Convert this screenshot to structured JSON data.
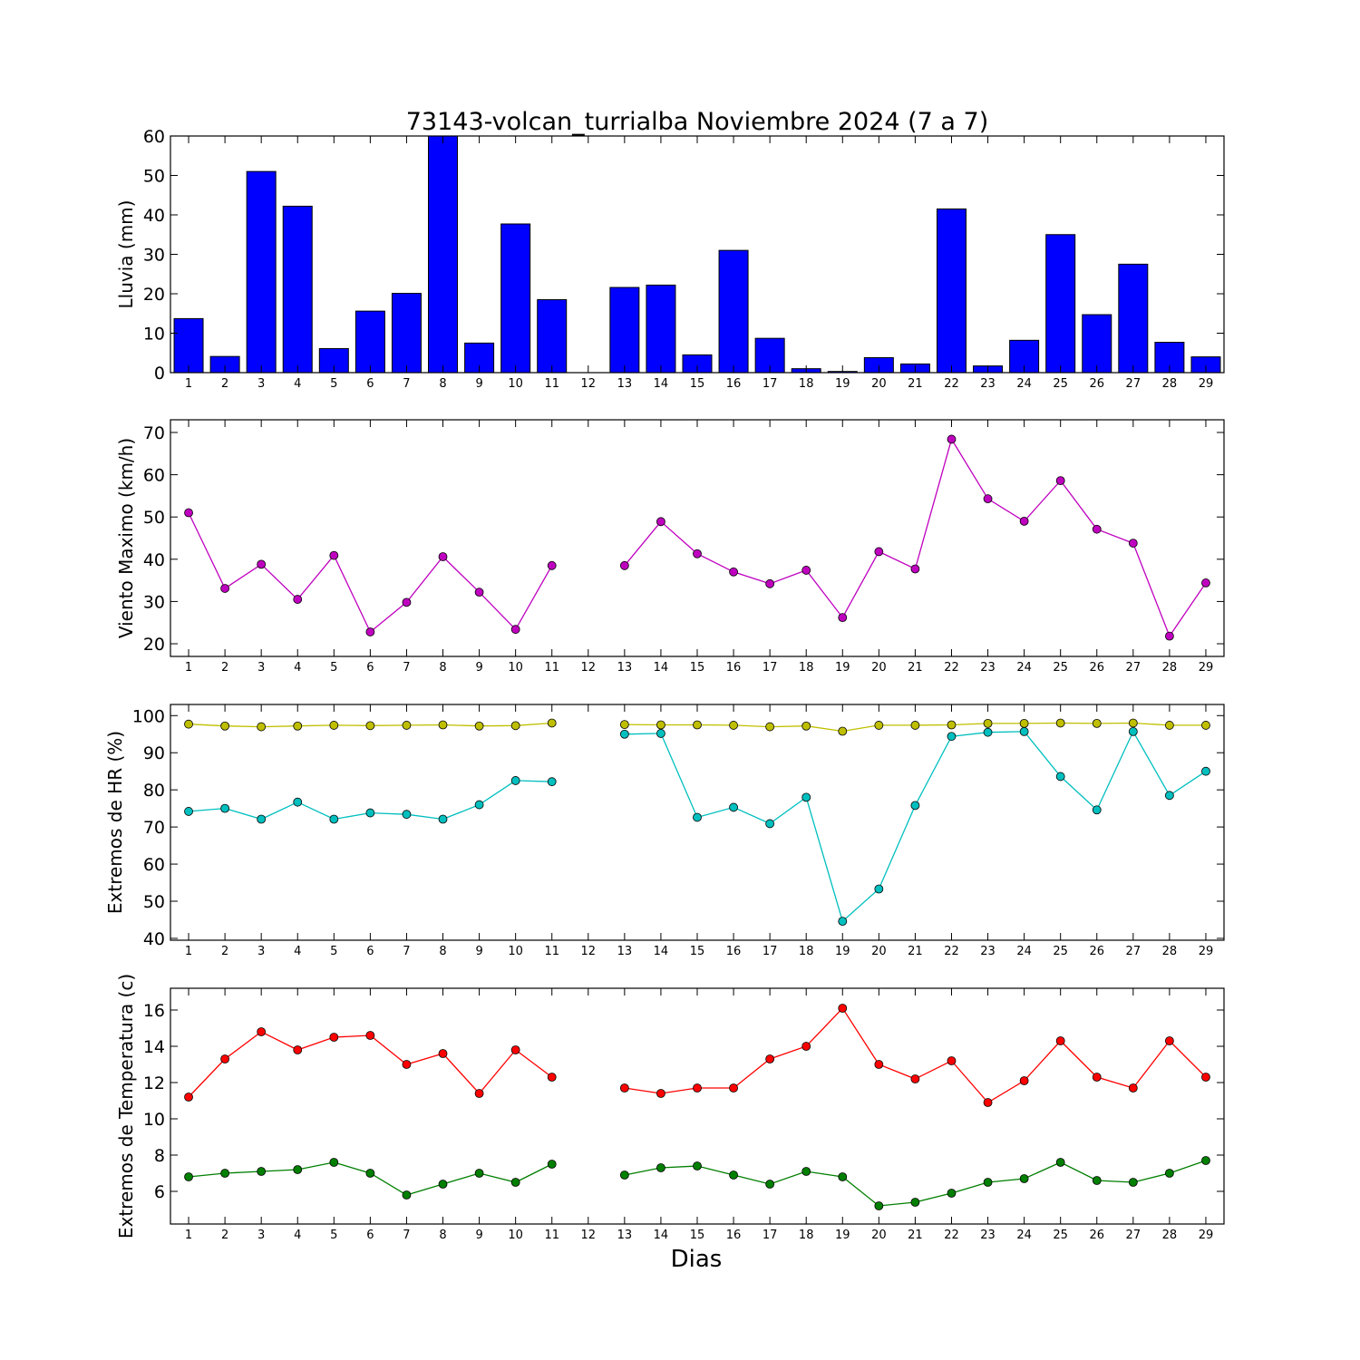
{
  "title": "73143-volcan_turrialba Noviembre 2024  (7 a 7)",
  "xlabel": "Dias",
  "chart_data": [
    {
      "type": "bar",
      "ylabel": "Lluvia (mm)",
      "ylim": [
        0,
        60
      ],
      "yticks": [
        0,
        10,
        20,
        30,
        40,
        50,
        60
      ],
      "categories": [
        1,
        2,
        3,
        4,
        5,
        6,
        7,
        8,
        9,
        10,
        11,
        12,
        13,
        14,
        15,
        16,
        17,
        18,
        19,
        20,
        21,
        22,
        23,
        24,
        25,
        26,
        27,
        28,
        29
      ],
      "series": [
        {
          "color": "#0000ff",
          "values": [
            13.7,
            4.1,
            51.0,
            42.2,
            6.1,
            15.6,
            20.1,
            60.0,
            7.5,
            37.7,
            18.5,
            null,
            21.6,
            22.2,
            4.5,
            31.0,
            8.7,
            1.0,
            0.3,
            3.8,
            2.2,
            41.5,
            1.7,
            8.2,
            35.0,
            14.7,
            27.5,
            7.7,
            4.0
          ]
        }
      ]
    },
    {
      "type": "line",
      "ylabel": "Viento Maximo (km/h)",
      "ylim": [
        17,
        73
      ],
      "yticks": [
        20,
        30,
        40,
        50,
        60,
        70
      ],
      "x": [
        1,
        2,
        3,
        4,
        5,
        6,
        7,
        8,
        9,
        10,
        11,
        12,
        13,
        14,
        15,
        16,
        17,
        18,
        19,
        20,
        21,
        22,
        23,
        24,
        25,
        26,
        27,
        28,
        29
      ],
      "series": [
        {
          "color": "#bf00bf",
          "values": [
            51.0,
            33.1,
            38.8,
            30.5,
            40.9,
            22.8,
            29.8,
            40.6,
            32.2,
            23.4,
            38.5,
            null,
            38.5,
            48.9,
            41.3,
            37.0,
            34.2,
            37.4,
            26.2,
            41.8,
            37.7,
            68.4,
            54.3,
            49.0,
            58.6,
            47.1,
            43.8,
            21.8,
            34.4
          ]
        }
      ]
    },
    {
      "type": "line",
      "ylabel": "Extremos de HR (%)",
      "ylim": [
        39.5,
        103
      ],
      "yticks": [
        40,
        50,
        60,
        70,
        80,
        90,
        100
      ],
      "x": [
        1,
        2,
        3,
        4,
        5,
        6,
        7,
        8,
        9,
        10,
        11,
        12,
        13,
        14,
        15,
        16,
        17,
        18,
        19,
        20,
        21,
        22,
        23,
        24,
        25,
        26,
        27,
        28,
        29
      ],
      "series": [
        {
          "color": "#bfbf00",
          "values": [
            97.7,
            97.2,
            97.0,
            97.2,
            97.4,
            97.3,
            97.4,
            97.5,
            97.2,
            97.3,
            98.0,
            null,
            97.6,
            97.5,
            97.5,
            97.4,
            97.0,
            97.2,
            95.8,
            97.4,
            97.4,
            97.5,
            97.9,
            97.9,
            98.0,
            97.9,
            98.0,
            97.4,
            97.4
          ]
        },
        {
          "color": "#00bfbf",
          "values": [
            74.2,
            75.0,
            72.1,
            76.7,
            72.1,
            73.8,
            73.4,
            72.1,
            76.0,
            82.5,
            82.2,
            null,
            95.0,
            95.2,
            72.6,
            75.3,
            70.9,
            78.0,
            44.6,
            53.3,
            75.8,
            94.4,
            95.5,
            95.7,
            83.6,
            74.6,
            95.7,
            78.5,
            85.0
          ]
        }
      ]
    },
    {
      "type": "line",
      "ylabel": "Extremos de Temperatura (c)",
      "ylim": [
        4.2,
        17.2
      ],
      "yticks": [
        6,
        8,
        10,
        12,
        14,
        16
      ],
      "x": [
        1,
        2,
        3,
        4,
        5,
        6,
        7,
        8,
        9,
        10,
        11,
        12,
        13,
        14,
        15,
        16,
        17,
        18,
        19,
        20,
        21,
        22,
        23,
        24,
        25,
        26,
        27,
        28,
        29
      ],
      "series": [
        {
          "color": "#ff0000",
          "values": [
            11.2,
            13.3,
            14.8,
            13.8,
            14.5,
            14.6,
            13.0,
            13.6,
            11.4,
            13.8,
            12.3,
            null,
            11.7,
            11.4,
            11.7,
            11.7,
            13.3,
            14.0,
            16.1,
            13.0,
            12.2,
            13.2,
            10.9,
            12.1,
            14.3,
            12.3,
            11.7,
            14.3,
            12.3
          ]
        },
        {
          "color": "#007f00",
          "values": [
            6.8,
            7.0,
            7.1,
            7.2,
            7.6,
            7.0,
            5.8,
            6.4,
            7.0,
            6.5,
            7.5,
            null,
            6.9,
            7.3,
            7.4,
            6.9,
            6.4,
            7.1,
            6.8,
            5.2,
            5.4,
            5.9,
            6.5,
            6.7,
            7.6,
            6.6,
            6.5,
            7.0,
            7.7
          ]
        }
      ]
    }
  ]
}
